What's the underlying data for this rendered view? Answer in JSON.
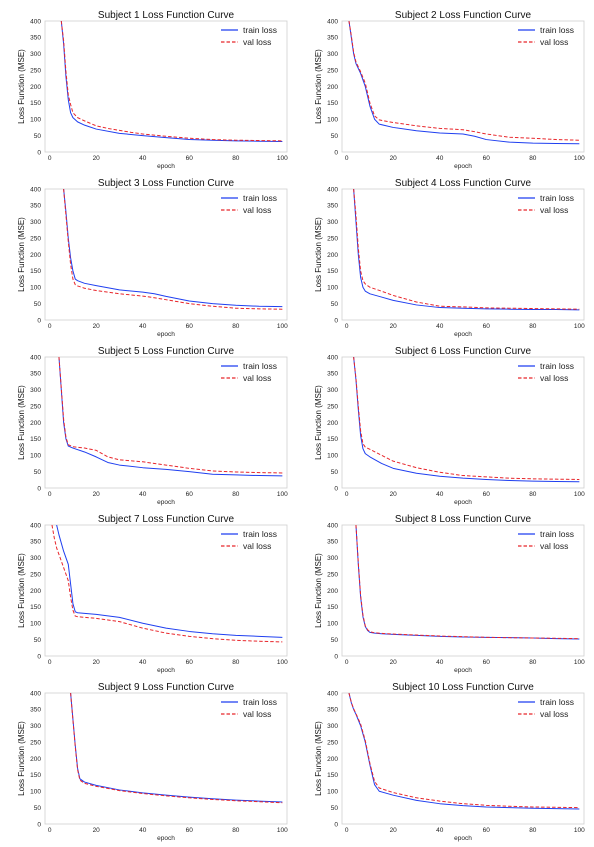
{
  "page": {
    "background": "#ffffff"
  },
  "style": {
    "train_color": "#1f3ff0",
    "val_color": "#e8262b"
  },
  "chart_data": [
    {
      "type": "line",
      "title": "Subject 1 Loss Function Curve",
      "xlabel": "epoch",
      "ylabel": "Loss Function (MSE)",
      "xlim": [
        -2,
        102
      ],
      "ylim": [
        0,
        400
      ],
      "xticks": [
        0,
        20,
        40,
        60,
        80,
        100
      ],
      "yticks": [
        0,
        50,
        100,
        150,
        200,
        250,
        300,
        350,
        400
      ],
      "legend": "top-right",
      "series": [
        {
          "name": "train loss",
          "style": "solid",
          "x": [
            5,
            6,
            7,
            8,
            9,
            10,
            12,
            15,
            20,
            30,
            40,
            50,
            60,
            70,
            80,
            90,
            100
          ],
          "y": [
            400,
            330,
            230,
            160,
            120,
            105,
            92,
            82,
            70,
            57,
            50,
            44,
            38,
            36,
            34,
            33,
            32
          ]
        },
        {
          "name": "val loss",
          "style": "dashed",
          "x": [
            5,
            6,
            7,
            8,
            9,
            10,
            12,
            15,
            20,
            25,
            30,
            35,
            40,
            50,
            60,
            70,
            80,
            90,
            100
          ],
          "y": [
            400,
            340,
            245,
            175,
            145,
            120,
            105,
            95,
            80,
            72,
            66,
            60,
            55,
            48,
            42,
            38,
            36,
            35,
            34
          ]
        }
      ]
    },
    {
      "type": "line",
      "title": "Subject 2 Loss Function Curve",
      "xlabel": "epoch",
      "ylabel": "Loss Function (MSE)",
      "xlim": [
        -2,
        102
      ],
      "ylim": [
        0,
        400
      ],
      "xticks": [
        0,
        20,
        40,
        60,
        80,
        100
      ],
      "yticks": [
        0,
        50,
        100,
        150,
        200,
        250,
        300,
        350,
        400
      ],
      "legend": "top-right",
      "series": [
        {
          "name": "train loss",
          "style": "solid",
          "x": [
            1,
            2,
            3,
            4,
            6,
            8,
            10,
            12,
            14,
            20,
            30,
            40,
            50,
            55,
            60,
            70,
            80,
            90,
            100
          ],
          "y": [
            400,
            350,
            300,
            270,
            240,
            200,
            140,
            100,
            85,
            75,
            65,
            58,
            55,
            48,
            38,
            30,
            27,
            26,
            25
          ]
        },
        {
          "name": "val loss",
          "style": "dashed",
          "x": [
            1,
            2,
            3,
            4,
            6,
            8,
            10,
            12,
            14,
            20,
            30,
            40,
            50,
            55,
            60,
            70,
            80,
            90,
            100
          ],
          "y": [
            400,
            355,
            305,
            275,
            245,
            210,
            150,
            110,
            98,
            90,
            80,
            72,
            68,
            62,
            55,
            45,
            42,
            38,
            36
          ]
        }
      ]
    },
    {
      "type": "line",
      "title": "Subject 3 Loss Function Curve",
      "xlabel": "epoch",
      "ylabel": "Loss Function (MSE)",
      "xlim": [
        -2,
        102
      ],
      "ylim": [
        0,
        400
      ],
      "xticks": [
        0,
        20,
        40,
        60,
        80,
        100
      ],
      "yticks": [
        0,
        50,
        100,
        150,
        200,
        250,
        300,
        350,
        400
      ],
      "legend": "top-right",
      "series": [
        {
          "name": "train loss",
          "style": "solid",
          "x": [
            6,
            7,
            8,
            9,
            10,
            11,
            12,
            15,
            20,
            30,
            40,
            45,
            50,
            60,
            70,
            80,
            90,
            100
          ],
          "y": [
            400,
            330,
            250,
            190,
            150,
            125,
            120,
            112,
            105,
            92,
            85,
            80,
            72,
            58,
            50,
            45,
            42,
            41
          ]
        },
        {
          "name": "val loss",
          "style": "dashed",
          "x": [
            6,
            7,
            8,
            9,
            10,
            11,
            12,
            15,
            20,
            30,
            40,
            45,
            50,
            60,
            70,
            80,
            90,
            100
          ],
          "y": [
            400,
            320,
            240,
            170,
            125,
            108,
            104,
            97,
            90,
            80,
            73,
            68,
            62,
            50,
            42,
            36,
            34,
            33
          ]
        }
      ]
    },
    {
      "type": "line",
      "title": "Subject 4 Loss Function Curve",
      "xlabel": "epoch",
      "ylabel": "Loss Function (MSE)",
      "xlim": [
        -2,
        102
      ],
      "ylim": [
        0,
        400
      ],
      "xticks": [
        0,
        20,
        40,
        60,
        80,
        100
      ],
      "yticks": [
        0,
        50,
        100,
        150,
        200,
        250,
        300,
        350,
        400
      ],
      "legend": "top-right",
      "series": [
        {
          "name": "train loss",
          "style": "solid",
          "x": [
            3,
            4,
            5,
            6,
            7,
            8,
            10,
            15,
            20,
            30,
            40,
            50,
            60,
            70,
            80,
            90,
            100
          ],
          "y": [
            400,
            300,
            200,
            130,
            100,
            88,
            80,
            70,
            60,
            46,
            38,
            36,
            34,
            33,
            32,
            32,
            31
          ]
        },
        {
          "name": "val loss",
          "style": "dashed",
          "x": [
            3,
            4,
            5,
            6,
            7,
            8,
            10,
            15,
            20,
            30,
            40,
            50,
            60,
            70,
            80,
            90,
            100
          ],
          "y": [
            400,
            320,
            220,
            150,
            120,
            110,
            100,
            88,
            75,
            55,
            42,
            40,
            37,
            36,
            35,
            34,
            33
          ]
        }
      ]
    },
    {
      "type": "line",
      "title": "Subject 5 Loss Function Curve",
      "xlabel": "epoch",
      "ylabel": "Loss Function (MSE)",
      "xlim": [
        -2,
        102
      ],
      "ylim": [
        0,
        400
      ],
      "xticks": [
        0,
        20,
        40,
        60,
        80,
        100
      ],
      "yticks": [
        0,
        50,
        100,
        150,
        200,
        250,
        300,
        350,
        400
      ],
      "legend": "top-right",
      "series": [
        {
          "name": "train loss",
          "style": "solid",
          "x": [
            4,
            5,
            6,
            7,
            8,
            10,
            15,
            20,
            25,
            30,
            40,
            50,
            60,
            70,
            80,
            90,
            100
          ],
          "y": [
            400,
            300,
            200,
            150,
            128,
            122,
            110,
            95,
            78,
            70,
            62,
            57,
            50,
            42,
            40,
            38,
            37
          ]
        },
        {
          "name": "val loss",
          "style": "dashed",
          "x": [
            4,
            5,
            6,
            7,
            8,
            10,
            15,
            20,
            25,
            30,
            40,
            50,
            60,
            70,
            80,
            90,
            100
          ],
          "y": [
            400,
            305,
            210,
            155,
            132,
            126,
            122,
            115,
            95,
            86,
            80,
            70,
            60,
            52,
            49,
            47,
            46
          ]
        }
      ]
    },
    {
      "type": "line",
      "title": "Subject 6 Loss Function Curve",
      "xlabel": "epoch",
      "ylabel": "Loss Function (MSE)",
      "xlim": [
        -2,
        102
      ],
      "ylim": [
        0,
        400
      ],
      "xticks": [
        0,
        20,
        40,
        60,
        80,
        100
      ],
      "yticks": [
        0,
        50,
        100,
        150,
        200,
        250,
        300,
        350,
        400
      ],
      "legend": "top-right",
      "series": [
        {
          "name": "train loss",
          "style": "solid",
          "x": [
            3,
            4,
            5,
            6,
            7,
            8,
            10,
            15,
            20,
            30,
            40,
            50,
            60,
            70,
            80,
            90,
            100
          ],
          "y": [
            400,
            330,
            240,
            160,
            120,
            105,
            95,
            75,
            60,
            45,
            36,
            30,
            26,
            23,
            21,
            20,
            19
          ]
        },
        {
          "name": "val loss",
          "style": "dashed",
          "x": [
            3,
            4,
            5,
            6,
            7,
            8,
            10,
            15,
            20,
            30,
            40,
            50,
            60,
            70,
            80,
            90,
            100
          ],
          "y": [
            400,
            335,
            250,
            175,
            135,
            125,
            118,
            100,
            82,
            62,
            48,
            38,
            34,
            30,
            28,
            27,
            26
          ]
        }
      ]
    },
    {
      "type": "line",
      "title": "Subject 7 Loss Function Curve",
      "xlabel": "epoch",
      "ylabel": "Loss Function (MSE)",
      "xlim": [
        -2,
        102
      ],
      "ylim": [
        0,
        400
      ],
      "xticks": [
        0,
        20,
        40,
        60,
        80,
        100
      ],
      "yticks": [
        0,
        50,
        100,
        150,
        200,
        250,
        300,
        350,
        400
      ],
      "legend": "top-right",
      "series": [
        {
          "name": "train loss",
          "style": "solid",
          "x": [
            3,
            4,
            6,
            8,
            9,
            10,
            11,
            12,
            15,
            20,
            30,
            40,
            50,
            60,
            70,
            80,
            90,
            100
          ],
          "y": [
            400,
            370,
            320,
            280,
            220,
            160,
            135,
            132,
            130,
            127,
            118,
            100,
            85,
            75,
            68,
            63,
            60,
            57
          ]
        },
        {
          "name": "val loss",
          "style": "dashed",
          "x": [
            1,
            2,
            3,
            4,
            6,
            8,
            9,
            10,
            11,
            12,
            15,
            20,
            30,
            40,
            50,
            60,
            70,
            80,
            90,
            100
          ],
          "y": [
            400,
            360,
            330,
            310,
            270,
            230,
            180,
            140,
            122,
            120,
            118,
            115,
            105,
            85,
            70,
            60,
            53,
            48,
            45,
            43
          ]
        }
      ]
    },
    {
      "type": "line",
      "title": "Subject 8 Loss Function Curve",
      "xlabel": "epoch",
      "ylabel": "Loss Function (MSE)",
      "xlim": [
        -2,
        102
      ],
      "ylim": [
        0,
        400
      ],
      "xticks": [
        0,
        20,
        40,
        60,
        80,
        100
      ],
      "yticks": [
        0,
        50,
        100,
        150,
        200,
        250,
        300,
        350,
        400
      ],
      "legend": "top-right",
      "series": [
        {
          "name": "train loss",
          "style": "solid",
          "x": [
            4,
            5,
            6,
            7,
            8,
            9,
            10,
            12,
            15,
            20,
            30,
            40,
            50,
            60,
            70,
            80,
            90,
            100
          ],
          "y": [
            400,
            280,
            180,
            120,
            90,
            78,
            72,
            70,
            68,
            66,
            63,
            60,
            58,
            57,
            56,
            55,
            53,
            52
          ]
        },
        {
          "name": "val loss",
          "style": "dashed",
          "x": [
            4,
            5,
            6,
            7,
            8,
            9,
            10,
            12,
            15,
            20,
            30,
            40,
            50,
            60,
            70,
            80,
            90,
            100
          ],
          "y": [
            400,
            285,
            185,
            125,
            92,
            80,
            74,
            71,
            69,
            67,
            64,
            61,
            59,
            57,
            56,
            55,
            54,
            53
          ]
        }
      ]
    },
    {
      "type": "line",
      "title": "Subject 9 Loss Function Curve",
      "xlabel": "epoch",
      "ylabel": "Loss Function (MSE)",
      "xlim": [
        -2,
        102
      ],
      "ylim": [
        0,
        400
      ],
      "xticks": [
        0,
        20,
        40,
        60,
        80,
        100
      ],
      "yticks": [
        0,
        50,
        100,
        150,
        200,
        250,
        300,
        350,
        400
      ],
      "legend": "top-right",
      "series": [
        {
          "name": "train loss",
          "style": "solid",
          "x": [
            9,
            10,
            11,
            12,
            13,
            15,
            20,
            30,
            40,
            50,
            60,
            70,
            80,
            90,
            100
          ],
          "y": [
            400,
            320,
            240,
            170,
            138,
            128,
            118,
            104,
            95,
            88,
            82,
            77,
            73,
            70,
            67
          ]
        },
        {
          "name": "val loss",
          "style": "dashed",
          "x": [
            9,
            10,
            11,
            12,
            13,
            15,
            20,
            30,
            40,
            50,
            60,
            70,
            80,
            90,
            100
          ],
          "y": [
            400,
            318,
            236,
            166,
            134,
            124,
            115,
            102,
            93,
            86,
            80,
            75,
            71,
            68,
            65
          ]
        }
      ]
    },
    {
      "type": "line",
      "title": "Subject 10 Loss Function Curve",
      "xlabel": "epoch",
      "ylabel": "Loss Function (MSE)",
      "xlim": [
        -2,
        102
      ],
      "ylim": [
        0,
        400
      ],
      "xticks": [
        0,
        20,
        40,
        60,
        80,
        100
      ],
      "yticks": [
        0,
        50,
        100,
        150,
        200,
        250,
        300,
        350,
        400
      ],
      "legend": "top-right",
      "series": [
        {
          "name": "train loss",
          "style": "solid",
          "x": [
            1,
            2,
            3,
            4,
            6,
            8,
            10,
            12,
            14,
            20,
            30,
            40,
            50,
            60,
            70,
            80,
            90,
            100
          ],
          "y": [
            400,
            370,
            350,
            335,
            300,
            250,
            180,
            120,
            100,
            88,
            72,
            62,
            56,
            52,
            50,
            48,
            47,
            46
          ]
        },
        {
          "name": "val loss",
          "style": "dashed",
          "x": [
            1,
            2,
            3,
            4,
            6,
            8,
            10,
            12,
            14,
            20,
            30,
            40,
            50,
            60,
            70,
            80,
            90,
            100
          ],
          "y": [
            400,
            372,
            352,
            337,
            305,
            255,
            185,
            130,
            110,
            96,
            80,
            70,
            62,
            57,
            54,
            52,
            51,
            50
          ]
        }
      ]
    }
  ]
}
